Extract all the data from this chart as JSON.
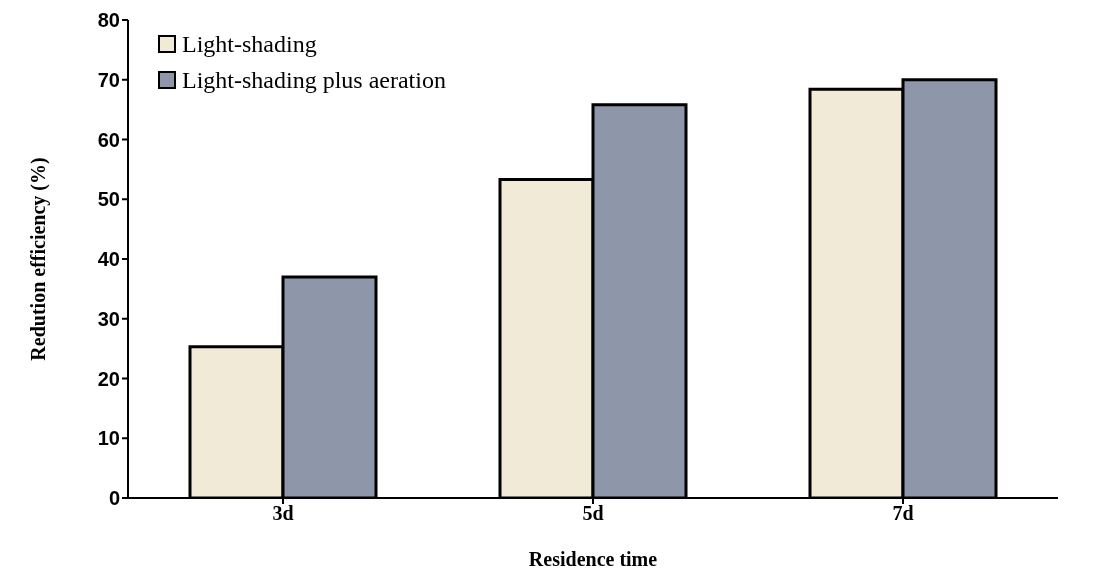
{
  "chart_data": {
    "type": "bar",
    "xlabel": "Residence time",
    "ylabel": "Redution efficiency (%)",
    "categories": [
      "3d",
      "5d",
      "7d"
    ],
    "series": [
      {
        "name": "Light-shading",
        "color": "#f0ead6",
        "values": [
          25.3,
          53.3,
          68.4
        ]
      },
      {
        "name": "Light-shading plus aeration",
        "color": "#8e97aa",
        "values": [
          37,
          65.8,
          70
        ]
      }
    ],
    "ylim": [
      0,
      80
    ],
    "yticks": [
      0,
      10,
      20,
      30,
      40,
      50,
      60,
      70,
      80
    ],
    "grid": false,
    "legend": "top left"
  }
}
